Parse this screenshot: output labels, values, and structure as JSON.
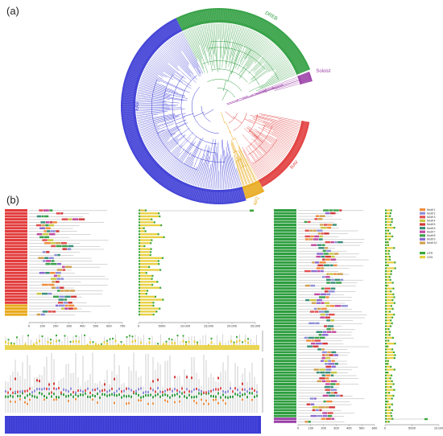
{
  "panel_a_label": "(a)",
  "panel_b_label": "(b)",
  "tree": {
    "groups": [
      {
        "name": "DREB",
        "color": "#2e9e3f"
      },
      {
        "name": "Soloist",
        "color": "#9b3fa8"
      },
      {
        "name": "RAV",
        "color": "#e23b3b"
      },
      {
        "name": "AP2",
        "color": "#e8a91a"
      },
      {
        "name": "ERF",
        "color": "#3b3bd6"
      }
    ]
  },
  "axes": {
    "motif_ticks": [
      "0",
      "100",
      "200",
      "300",
      "400",
      "500",
      "600",
      "700"
    ],
    "gene_ticks": [
      "0",
      "5000",
      "10,000",
      "15,000",
      "20,000",
      "25,000"
    ],
    "right_motif_ticks": [
      "0",
      "100",
      "200",
      "300",
      "400",
      "500",
      "600"
    ],
    "right_gene_ticks": [
      "0",
      "5000",
      "10,000"
    ]
  },
  "legend": {
    "motifs": [
      {
        "label": "Motif 1",
        "color": "#f08c3c"
      },
      {
        "label": "Motif 2",
        "color": "#8f8fd8"
      },
      {
        "label": "Motif 3",
        "color": "#e05050"
      },
      {
        "label": "Motif 4",
        "color": "#c8c840"
      },
      {
        "label": "Motif 5",
        "color": "#d23a3a"
      },
      {
        "label": "Motif 6",
        "color": "#3a8f7a"
      },
      {
        "label": "Motif 7",
        "color": "#c04aa0"
      },
      {
        "label": "Motif 8",
        "color": "#3aa04a"
      },
      {
        "label": "Motif 9",
        "color": "#8c6ad0"
      },
      {
        "label": "Motif 10",
        "color": "#d0a050"
      }
    ],
    "structure": [
      {
        "label": "UTR",
        "color": "#3aa83a"
      },
      {
        "label": "CDS",
        "color": "#e8d040"
      }
    ]
  }
}
